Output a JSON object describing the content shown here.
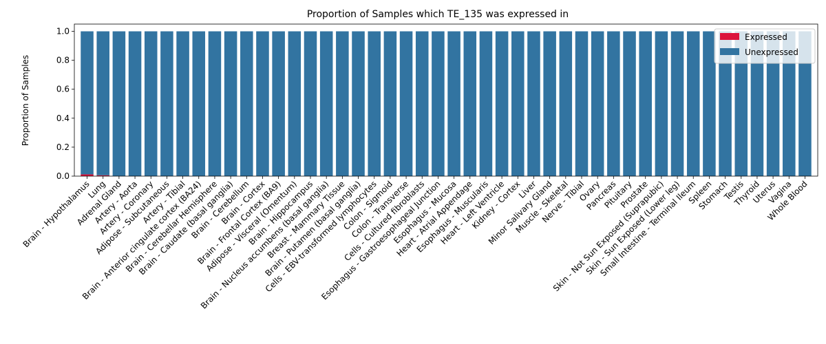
{
  "chart_data": {
    "type": "bar",
    "stacked": true,
    "title": "Proportion of Samples which TE_135 was expressed in",
    "xlabel": "",
    "ylabel": "Proportion of Samples",
    "ylim": [
      0,
      1.05
    ],
    "yticks": [
      "0.0",
      "0.2",
      "0.4",
      "0.6",
      "0.8",
      "1.0"
    ],
    "grid": false,
    "legend_position": "top-right",
    "categories": [
      "Brain - Hypothalamus",
      "Lung",
      "Adrenal Gland",
      "Artery - Aorta",
      "Artery - Coronary",
      "Adipose - Subcutaneous",
      "Artery - Tibial",
      "Brain - Anterior cingulate cortex (BA24)",
      "Brain - Cerebellar Hemisphere",
      "Brain - Caudate (basal ganglia)",
      "Brain - Cerebellum",
      "Brain - Cortex",
      "Brain - Frontal Cortex (BA9)",
      "Adipose - Visceral (Omentum)",
      "Brain - Hippocampus",
      "Brain - Nucleus accumbens (basal ganglia)",
      "Breast - Mammary Tissue",
      "Brain - Putamen (basal ganglia)",
      "Cells - EBV-transformed lymphocytes",
      "Colon - Sigmoid",
      "Colon - Transverse",
      "Cells - Cultured fibroblasts",
      "Esophagus - Gastroesophageal Junction",
      "Esophagus - Mucosa",
      "Heart - Atrial Appendage",
      "Esophagus - Muscularis",
      "Heart - Left Ventricle",
      "Kidney - Cortex",
      "Liver",
      "Minor Salivary Gland",
      "Muscle - Skeletal",
      "Nerve - Tibial",
      "Ovary",
      "Pancreas",
      "Pituitary",
      "Prostate",
      "Skin - Not Sun Exposed (Suprapubic)",
      "Skin - Sun Exposed (Lower leg)",
      "Small Intestine - Terminal Ileum",
      "Spleen",
      "Stomach",
      "Testis",
      "Thyroid",
      "Uterus",
      "Vagina",
      "Whole Blood"
    ],
    "series": [
      {
        "name": "Expressed",
        "color": "#dc143c",
        "values": [
          0.012,
          0.006,
          0,
          0,
          0,
          0,
          0,
          0,
          0,
          0,
          0,
          0,
          0,
          0,
          0,
          0,
          0,
          0,
          0,
          0,
          0,
          0,
          0,
          0,
          0,
          0,
          0,
          0,
          0,
          0,
          0,
          0,
          0,
          0,
          0,
          0,
          0,
          0,
          0,
          0,
          0,
          0,
          0,
          0,
          0,
          0
        ]
      },
      {
        "name": "Unexpressed",
        "color": "#3274a1",
        "values": [
          0.988,
          0.994,
          1,
          1,
          1,
          1,
          1,
          1,
          1,
          1,
          1,
          1,
          1,
          1,
          1,
          1,
          1,
          1,
          1,
          1,
          1,
          1,
          1,
          1,
          1,
          1,
          1,
          1,
          1,
          1,
          1,
          1,
          1,
          1,
          1,
          1,
          1,
          1,
          1,
          1,
          1,
          1,
          1,
          1,
          1,
          1
        ]
      }
    ]
  }
}
